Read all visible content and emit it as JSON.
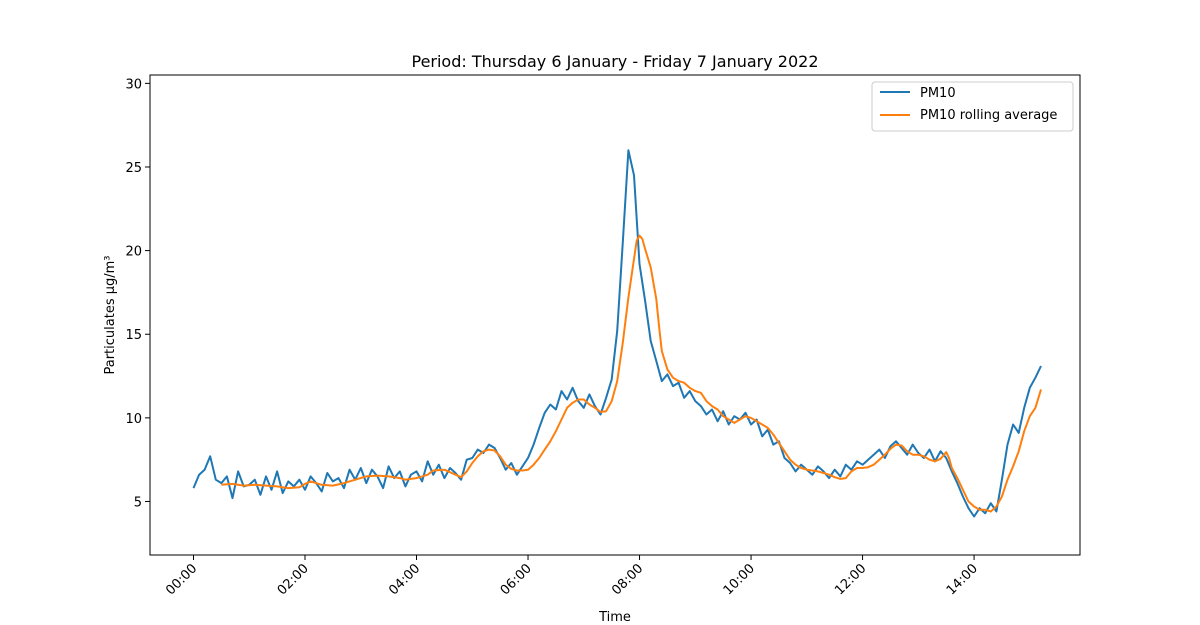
{
  "chart_data": {
    "type": "line",
    "title": "Period: Thursday 6 January - Friday 7 January 2022",
    "xlabel": "Time",
    "ylabel": "Particulates μg/m³",
    "x_unit": "hours",
    "xlim": [
      -0.78,
      15.9
    ],
    "ylim": [
      1.8,
      30.5
    ],
    "xticks": [
      {
        "value": 0,
        "label": "00:00"
      },
      {
        "value": 2,
        "label": "02:00"
      },
      {
        "value": 4,
        "label": "04:00"
      },
      {
        "value": 6,
        "label": "06:00"
      },
      {
        "value": 8,
        "label": "08:00"
      },
      {
        "value": 10,
        "label": "10:00"
      },
      {
        "value": 12,
        "label": "12:00"
      },
      {
        "value": 14,
        "label": "14:00"
      }
    ],
    "yticks": [
      {
        "value": 5,
        "label": "5"
      },
      {
        "value": 10,
        "label": "10"
      },
      {
        "value": 15,
        "label": "15"
      },
      {
        "value": 20,
        "label": "20"
      },
      {
        "value": 25,
        "label": "25"
      },
      {
        "value": 30,
        "label": "30"
      }
    ],
    "legend_position": "top-right",
    "grid": false,
    "series": [
      {
        "name": "PM10",
        "color": "#1f77b4",
        "points": [
          [
            0.0,
            5.8
          ],
          [
            0.1,
            6.6
          ],
          [
            0.2,
            6.9
          ],
          [
            0.3,
            7.7
          ],
          [
            0.4,
            6.3
          ],
          [
            0.5,
            6.1
          ],
          [
            0.6,
            6.5
          ],
          [
            0.7,
            5.2
          ],
          [
            0.8,
            6.8
          ],
          [
            0.9,
            5.9
          ],
          [
            1.0,
            6.0
          ],
          [
            1.1,
            6.3
          ],
          [
            1.2,
            5.4
          ],
          [
            1.3,
            6.5
          ],
          [
            1.4,
            5.7
          ],
          [
            1.5,
            6.8
          ],
          [
            1.6,
            5.5
          ],
          [
            1.7,
            6.2
          ],
          [
            1.8,
            5.9
          ],
          [
            1.9,
            6.3
          ],
          [
            2.0,
            5.7
          ],
          [
            2.1,
            6.5
          ],
          [
            2.2,
            6.1
          ],
          [
            2.3,
            5.6
          ],
          [
            2.4,
            6.7
          ],
          [
            2.5,
            6.2
          ],
          [
            2.6,
            6.4
          ],
          [
            2.7,
            5.8
          ],
          [
            2.8,
            6.9
          ],
          [
            2.9,
            6.3
          ],
          [
            3.0,
            7.0
          ],
          [
            3.1,
            6.1
          ],
          [
            3.2,
            6.9
          ],
          [
            3.3,
            6.5
          ],
          [
            3.4,
            5.8
          ],
          [
            3.5,
            7.1
          ],
          [
            3.6,
            6.4
          ],
          [
            3.7,
            6.8
          ],
          [
            3.8,
            5.9
          ],
          [
            3.9,
            6.6
          ],
          [
            4.0,
            6.8
          ],
          [
            4.1,
            6.2
          ],
          [
            4.2,
            7.4
          ],
          [
            4.3,
            6.6
          ],
          [
            4.4,
            7.2
          ],
          [
            4.5,
            6.4
          ],
          [
            4.6,
            7.0
          ],
          [
            4.7,
            6.7
          ],
          [
            4.8,
            6.3
          ],
          [
            4.9,
            7.5
          ],
          [
            5.0,
            7.6
          ],
          [
            5.1,
            8.1
          ],
          [
            5.2,
            7.9
          ],
          [
            5.3,
            8.4
          ],
          [
            5.4,
            8.2
          ],
          [
            5.5,
            7.6
          ],
          [
            5.6,
            6.9
          ],
          [
            5.7,
            7.3
          ],
          [
            5.8,
            6.6
          ],
          [
            5.9,
            7.1
          ],
          [
            6.0,
            7.6
          ],
          [
            6.1,
            8.4
          ],
          [
            6.2,
            9.4
          ],
          [
            6.3,
            10.3
          ],
          [
            6.4,
            10.8
          ],
          [
            6.5,
            10.5
          ],
          [
            6.6,
            11.6
          ],
          [
            6.7,
            11.1
          ],
          [
            6.8,
            11.8
          ],
          [
            6.9,
            11.0
          ],
          [
            7.0,
            10.6
          ],
          [
            7.1,
            11.4
          ],
          [
            7.2,
            10.7
          ],
          [
            7.3,
            10.2
          ],
          [
            7.4,
            11.2
          ],
          [
            7.5,
            12.3
          ],
          [
            7.6,
            15.2
          ],
          [
            7.7,
            20.5
          ],
          [
            7.8,
            26.0
          ],
          [
            7.9,
            24.5
          ],
          [
            8.0,
            19.2
          ],
          [
            8.1,
            17.0
          ],
          [
            8.2,
            14.6
          ],
          [
            8.3,
            13.4
          ],
          [
            8.4,
            12.2
          ],
          [
            8.5,
            12.6
          ],
          [
            8.6,
            11.9
          ],
          [
            8.7,
            12.1
          ],
          [
            8.8,
            11.2
          ],
          [
            8.9,
            11.6
          ],
          [
            9.0,
            11.0
          ],
          [
            9.1,
            10.7
          ],
          [
            9.2,
            10.2
          ],
          [
            9.3,
            10.5
          ],
          [
            9.4,
            9.8
          ],
          [
            9.5,
            10.4
          ],
          [
            9.6,
            9.6
          ],
          [
            9.7,
            10.1
          ],
          [
            9.8,
            9.9
          ],
          [
            9.9,
            10.3
          ],
          [
            10.0,
            9.6
          ],
          [
            10.1,
            9.9
          ],
          [
            10.2,
            8.9
          ],
          [
            10.3,
            9.3
          ],
          [
            10.4,
            8.4
          ],
          [
            10.5,
            8.6
          ],
          [
            10.6,
            7.6
          ],
          [
            10.7,
            7.3
          ],
          [
            10.8,
            6.8
          ],
          [
            10.9,
            7.2
          ],
          [
            11.0,
            6.9
          ],
          [
            11.1,
            6.6
          ],
          [
            11.2,
            7.1
          ],
          [
            11.3,
            6.8
          ],
          [
            11.4,
            6.4
          ],
          [
            11.5,
            6.9
          ],
          [
            11.6,
            6.5
          ],
          [
            11.7,
            7.2
          ],
          [
            11.8,
            6.9
          ],
          [
            11.9,
            7.4
          ],
          [
            12.0,
            7.2
          ],
          [
            12.1,
            7.5
          ],
          [
            12.2,
            7.8
          ],
          [
            12.3,
            8.1
          ],
          [
            12.4,
            7.6
          ],
          [
            12.5,
            8.3
          ],
          [
            12.6,
            8.6
          ],
          [
            12.7,
            8.2
          ],
          [
            12.8,
            7.8
          ],
          [
            12.9,
            8.4
          ],
          [
            13.0,
            7.9
          ],
          [
            13.1,
            7.6
          ],
          [
            13.2,
            8.1
          ],
          [
            13.3,
            7.4
          ],
          [
            13.4,
            8.0
          ],
          [
            13.5,
            7.6
          ],
          [
            13.6,
            6.8
          ],
          [
            13.7,
            6.1
          ],
          [
            13.8,
            5.3
          ],
          [
            13.9,
            4.6
          ],
          [
            14.0,
            4.1
          ],
          [
            14.1,
            4.6
          ],
          [
            14.2,
            4.3
          ],
          [
            14.3,
            4.9
          ],
          [
            14.4,
            4.4
          ],
          [
            14.5,
            6.3
          ],
          [
            14.6,
            8.4
          ],
          [
            14.7,
            9.6
          ],
          [
            14.8,
            9.1
          ],
          [
            14.9,
            10.6
          ],
          [
            15.0,
            11.8
          ],
          [
            15.1,
            12.4
          ],
          [
            15.2,
            13.1
          ]
        ]
      },
      {
        "name": "PM10 rolling average",
        "color": "#ff7f0e",
        "points": [
          [
            0.5,
            6.0
          ],
          [
            0.7,
            6.05
          ],
          [
            0.9,
            5.95
          ],
          [
            1.1,
            6.0
          ],
          [
            1.3,
            5.95
          ],
          [
            1.5,
            5.9
          ],
          [
            1.7,
            5.8
          ],
          [
            1.9,
            5.85
          ],
          [
            2.0,
            6.05
          ],
          [
            2.1,
            6.2
          ],
          [
            2.3,
            6.0
          ],
          [
            2.5,
            5.95
          ],
          [
            2.7,
            6.1
          ],
          [
            2.9,
            6.3
          ],
          [
            3.1,
            6.5
          ],
          [
            3.3,
            6.55
          ],
          [
            3.5,
            6.5
          ],
          [
            3.7,
            6.4
          ],
          [
            3.8,
            6.3
          ],
          [
            3.9,
            6.35
          ],
          [
            4.0,
            6.4
          ],
          [
            4.1,
            6.5
          ],
          [
            4.2,
            6.6
          ],
          [
            4.3,
            6.85
          ],
          [
            4.5,
            6.9
          ],
          [
            4.6,
            6.75
          ],
          [
            4.8,
            6.45
          ],
          [
            4.9,
            6.8
          ],
          [
            5.0,
            7.3
          ],
          [
            5.1,
            7.7
          ],
          [
            5.2,
            8.0
          ],
          [
            5.3,
            8.1
          ],
          [
            5.4,
            8.05
          ],
          [
            5.5,
            7.7
          ],
          [
            5.6,
            7.2
          ],
          [
            5.7,
            6.95
          ],
          [
            5.8,
            6.85
          ],
          [
            5.9,
            6.85
          ],
          [
            6.0,
            6.9
          ],
          [
            6.1,
            7.2
          ],
          [
            6.2,
            7.6
          ],
          [
            6.3,
            8.1
          ],
          [
            6.4,
            8.6
          ],
          [
            6.5,
            9.2
          ],
          [
            6.6,
            9.9
          ],
          [
            6.7,
            10.6
          ],
          [
            6.8,
            10.9
          ],
          [
            6.9,
            11.1
          ],
          [
            7.0,
            11.1
          ],
          [
            7.1,
            10.8
          ],
          [
            7.2,
            10.6
          ],
          [
            7.3,
            10.35
          ],
          [
            7.4,
            10.4
          ],
          [
            7.5,
            11.0
          ],
          [
            7.6,
            12.2
          ],
          [
            7.7,
            14.5
          ],
          [
            7.8,
            17.2
          ],
          [
            7.9,
            19.5
          ],
          [
            7.95,
            20.6
          ],
          [
            8.0,
            20.9
          ],
          [
            8.05,
            20.7
          ],
          [
            8.1,
            20.1
          ],
          [
            8.2,
            19.0
          ],
          [
            8.3,
            17.1
          ],
          [
            8.35,
            15.5
          ],
          [
            8.4,
            14.0
          ],
          [
            8.5,
            12.9
          ],
          [
            8.6,
            12.4
          ],
          [
            8.7,
            12.2
          ],
          [
            8.8,
            12.1
          ],
          [
            8.9,
            11.8
          ],
          [
            9.0,
            11.6
          ],
          [
            9.1,
            11.5
          ],
          [
            9.2,
            11.0
          ],
          [
            9.3,
            10.7
          ],
          [
            9.4,
            10.5
          ],
          [
            9.5,
            10.1
          ],
          [
            9.6,
            9.9
          ],
          [
            9.7,
            9.7
          ],
          [
            9.8,
            9.9
          ],
          [
            9.9,
            10.1
          ],
          [
            10.0,
            10.0
          ],
          [
            10.1,
            9.8
          ],
          [
            10.2,
            9.6
          ],
          [
            10.3,
            9.4
          ],
          [
            10.4,
            9.0
          ],
          [
            10.5,
            8.5
          ],
          [
            10.6,
            8.0
          ],
          [
            10.7,
            7.5
          ],
          [
            10.8,
            7.2
          ],
          [
            10.9,
            7.0
          ],
          [
            11.0,
            6.9
          ],
          [
            11.1,
            6.85
          ],
          [
            11.2,
            6.8
          ],
          [
            11.3,
            6.7
          ],
          [
            11.4,
            6.6
          ],
          [
            11.5,
            6.45
          ],
          [
            11.6,
            6.35
          ],
          [
            11.7,
            6.4
          ],
          [
            11.8,
            6.8
          ],
          [
            11.9,
            7.0
          ],
          [
            12.0,
            7.0
          ],
          [
            12.1,
            7.05
          ],
          [
            12.2,
            7.2
          ],
          [
            12.3,
            7.5
          ],
          [
            12.4,
            7.8
          ],
          [
            12.5,
            8.15
          ],
          [
            12.6,
            8.4
          ],
          [
            12.7,
            8.35
          ],
          [
            12.8,
            8.0
          ],
          [
            12.9,
            7.8
          ],
          [
            13.0,
            7.8
          ],
          [
            13.1,
            7.7
          ],
          [
            13.2,
            7.5
          ],
          [
            13.3,
            7.4
          ],
          [
            13.4,
            7.55
          ],
          [
            13.5,
            7.95
          ],
          [
            13.55,
            7.6
          ],
          [
            13.6,
            7.0
          ],
          [
            13.7,
            6.4
          ],
          [
            13.8,
            5.7
          ],
          [
            13.9,
            5.0
          ],
          [
            14.0,
            4.7
          ],
          [
            14.1,
            4.5
          ],
          [
            14.2,
            4.5
          ],
          [
            14.3,
            4.4
          ],
          [
            14.4,
            4.7
          ],
          [
            14.5,
            5.3
          ],
          [
            14.6,
            6.3
          ],
          [
            14.7,
            7.1
          ],
          [
            14.8,
            8.0
          ],
          [
            14.9,
            9.2
          ],
          [
            15.0,
            10.1
          ],
          [
            15.1,
            10.6
          ],
          [
            15.2,
            11.7
          ]
        ]
      }
    ]
  }
}
